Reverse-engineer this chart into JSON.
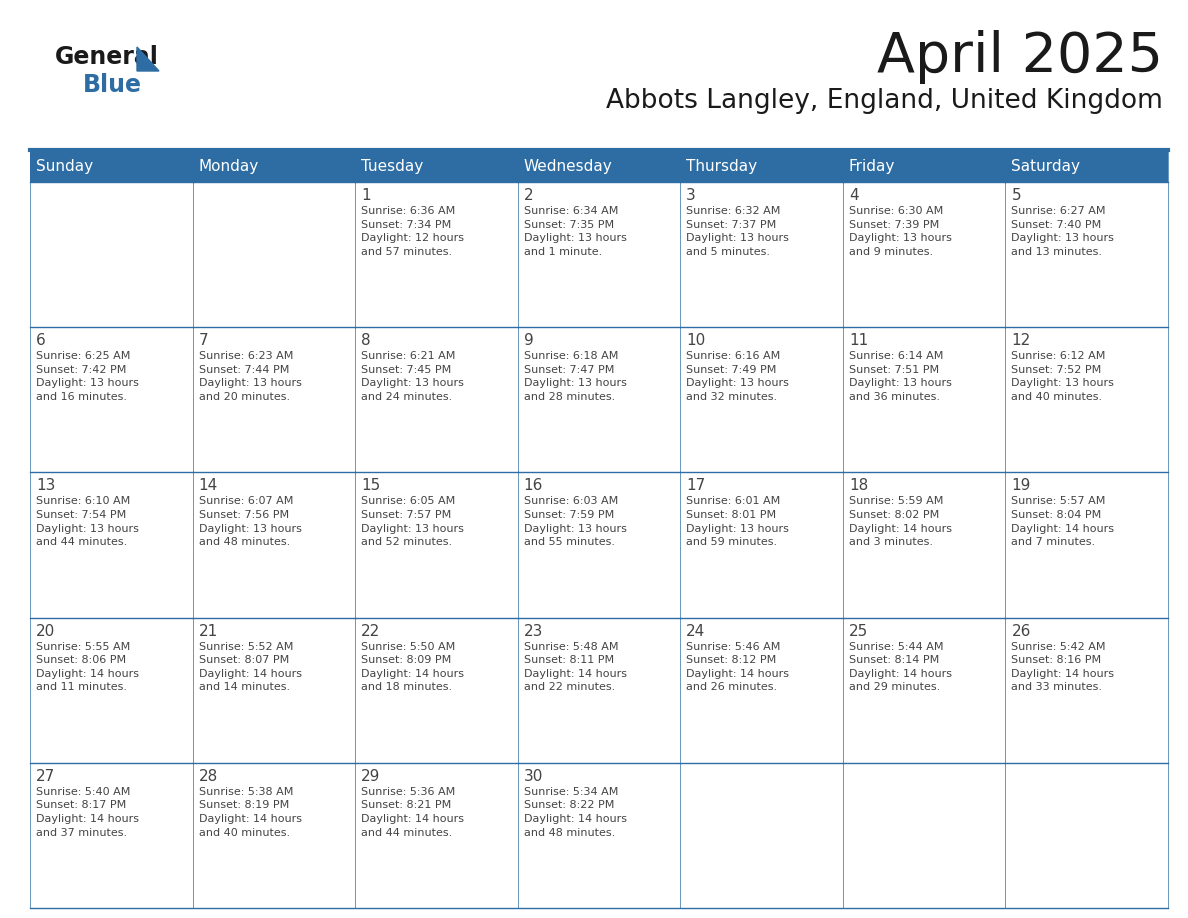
{
  "title": "April 2025",
  "subtitle": "Abbots Langley, England, United Kingdom",
  "header_bg": "#2E6DA4",
  "header_text": "#FFFFFF",
  "border_color": "#2E6DA4",
  "text_color": "#444444",
  "days_of_week": [
    "Sunday",
    "Monday",
    "Tuesday",
    "Wednesday",
    "Thursday",
    "Friday",
    "Saturday"
  ],
  "weeks": [
    [
      {
        "day": "",
        "info": ""
      },
      {
        "day": "",
        "info": ""
      },
      {
        "day": "1",
        "info": "Sunrise: 6:36 AM\nSunset: 7:34 PM\nDaylight: 12 hours\nand 57 minutes."
      },
      {
        "day": "2",
        "info": "Sunrise: 6:34 AM\nSunset: 7:35 PM\nDaylight: 13 hours\nand 1 minute."
      },
      {
        "day": "3",
        "info": "Sunrise: 6:32 AM\nSunset: 7:37 PM\nDaylight: 13 hours\nand 5 minutes."
      },
      {
        "day": "4",
        "info": "Sunrise: 6:30 AM\nSunset: 7:39 PM\nDaylight: 13 hours\nand 9 minutes."
      },
      {
        "day": "5",
        "info": "Sunrise: 6:27 AM\nSunset: 7:40 PM\nDaylight: 13 hours\nand 13 minutes."
      }
    ],
    [
      {
        "day": "6",
        "info": "Sunrise: 6:25 AM\nSunset: 7:42 PM\nDaylight: 13 hours\nand 16 minutes."
      },
      {
        "day": "7",
        "info": "Sunrise: 6:23 AM\nSunset: 7:44 PM\nDaylight: 13 hours\nand 20 minutes."
      },
      {
        "day": "8",
        "info": "Sunrise: 6:21 AM\nSunset: 7:45 PM\nDaylight: 13 hours\nand 24 minutes."
      },
      {
        "day": "9",
        "info": "Sunrise: 6:18 AM\nSunset: 7:47 PM\nDaylight: 13 hours\nand 28 minutes."
      },
      {
        "day": "10",
        "info": "Sunrise: 6:16 AM\nSunset: 7:49 PM\nDaylight: 13 hours\nand 32 minutes."
      },
      {
        "day": "11",
        "info": "Sunrise: 6:14 AM\nSunset: 7:51 PM\nDaylight: 13 hours\nand 36 minutes."
      },
      {
        "day": "12",
        "info": "Sunrise: 6:12 AM\nSunset: 7:52 PM\nDaylight: 13 hours\nand 40 minutes."
      }
    ],
    [
      {
        "day": "13",
        "info": "Sunrise: 6:10 AM\nSunset: 7:54 PM\nDaylight: 13 hours\nand 44 minutes."
      },
      {
        "day": "14",
        "info": "Sunrise: 6:07 AM\nSunset: 7:56 PM\nDaylight: 13 hours\nand 48 minutes."
      },
      {
        "day": "15",
        "info": "Sunrise: 6:05 AM\nSunset: 7:57 PM\nDaylight: 13 hours\nand 52 minutes."
      },
      {
        "day": "16",
        "info": "Sunrise: 6:03 AM\nSunset: 7:59 PM\nDaylight: 13 hours\nand 55 minutes."
      },
      {
        "day": "17",
        "info": "Sunrise: 6:01 AM\nSunset: 8:01 PM\nDaylight: 13 hours\nand 59 minutes."
      },
      {
        "day": "18",
        "info": "Sunrise: 5:59 AM\nSunset: 8:02 PM\nDaylight: 14 hours\nand 3 minutes."
      },
      {
        "day": "19",
        "info": "Sunrise: 5:57 AM\nSunset: 8:04 PM\nDaylight: 14 hours\nand 7 minutes."
      }
    ],
    [
      {
        "day": "20",
        "info": "Sunrise: 5:55 AM\nSunset: 8:06 PM\nDaylight: 14 hours\nand 11 minutes."
      },
      {
        "day": "21",
        "info": "Sunrise: 5:52 AM\nSunset: 8:07 PM\nDaylight: 14 hours\nand 14 minutes."
      },
      {
        "day": "22",
        "info": "Sunrise: 5:50 AM\nSunset: 8:09 PM\nDaylight: 14 hours\nand 18 minutes."
      },
      {
        "day": "23",
        "info": "Sunrise: 5:48 AM\nSunset: 8:11 PM\nDaylight: 14 hours\nand 22 minutes."
      },
      {
        "day": "24",
        "info": "Sunrise: 5:46 AM\nSunset: 8:12 PM\nDaylight: 14 hours\nand 26 minutes."
      },
      {
        "day": "25",
        "info": "Sunrise: 5:44 AM\nSunset: 8:14 PM\nDaylight: 14 hours\nand 29 minutes."
      },
      {
        "day": "26",
        "info": "Sunrise: 5:42 AM\nSunset: 8:16 PM\nDaylight: 14 hours\nand 33 minutes."
      }
    ],
    [
      {
        "day": "27",
        "info": "Sunrise: 5:40 AM\nSunset: 8:17 PM\nDaylight: 14 hours\nand 37 minutes."
      },
      {
        "day": "28",
        "info": "Sunrise: 5:38 AM\nSunset: 8:19 PM\nDaylight: 14 hours\nand 40 minutes."
      },
      {
        "day": "29",
        "info": "Sunrise: 5:36 AM\nSunset: 8:21 PM\nDaylight: 14 hours\nand 44 minutes."
      },
      {
        "day": "30",
        "info": "Sunrise: 5:34 AM\nSunset: 8:22 PM\nDaylight: 14 hours\nand 48 minutes."
      },
      {
        "day": "",
        "info": ""
      },
      {
        "day": "",
        "info": ""
      },
      {
        "day": "",
        "info": ""
      }
    ]
  ],
  "logo_general_color": "#1a1a1a",
  "logo_blue_color": "#2E6DA4"
}
